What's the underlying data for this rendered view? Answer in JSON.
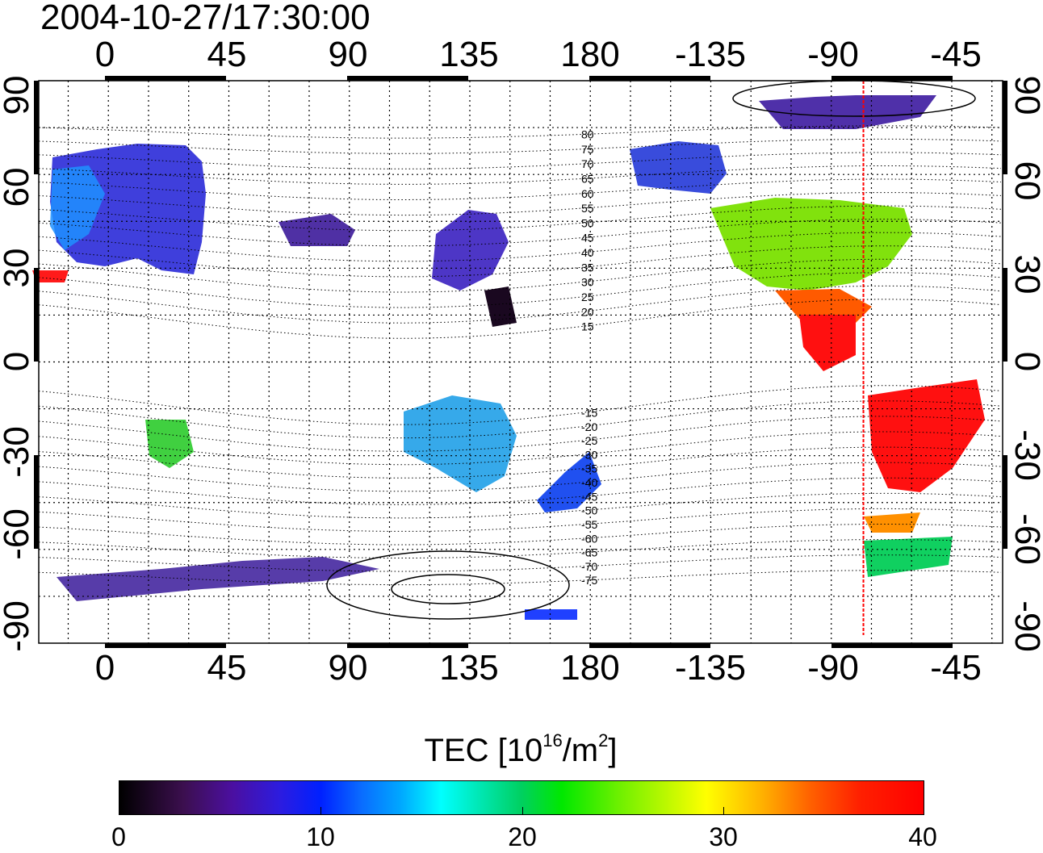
{
  "title": "2004-10-27/17:30:00",
  "x_ticks": [
    "0",
    "45",
    "90",
    "135",
    "180",
    "-135",
    "-90",
    "-45"
  ],
  "y_ticks": [
    "90",
    "60",
    "30",
    "0",
    "-30",
    "-60",
    "-90"
  ],
  "contour_labels": [
    "80",
    "75",
    "70",
    "65",
    "60",
    "55",
    "50",
    "45",
    "40",
    "35",
    "30",
    "25",
    "20",
    "15",
    "-15",
    "-20",
    "-25",
    "-30",
    "-35",
    "-40",
    "-45",
    "-50",
    "-55",
    "-60",
    "-65",
    "-70",
    "-75"
  ],
  "colorbar": {
    "label": "TEC [10",
    "label_sup1": "16",
    "label_mid": "/m",
    "label_sup2": "2",
    "label_end": "]",
    "ticks": [
      "0",
      "10",
      "20",
      "30",
      "40"
    ],
    "range": [
      0,
      40
    ]
  },
  "terminator_longitude": -78,
  "colors": {
    "terminator": "#ff0000",
    "frame": "#000000"
  }
}
